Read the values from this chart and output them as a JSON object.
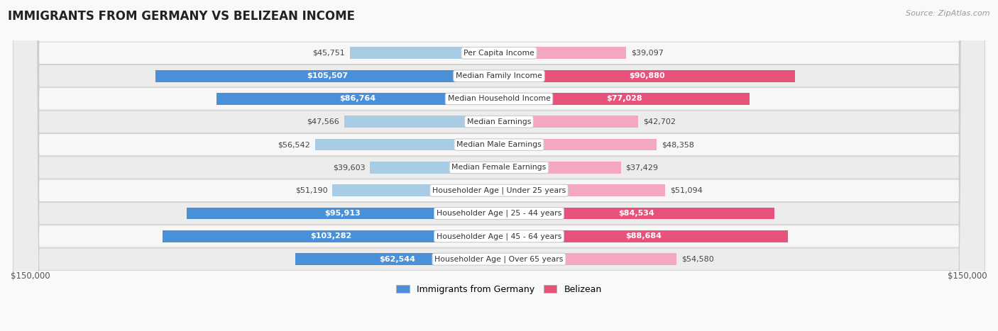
{
  "title": "IMMIGRANTS FROM GERMANY VS BELIZEAN INCOME",
  "source": "Source: ZipAtlas.com",
  "categories": [
    "Per Capita Income",
    "Median Family Income",
    "Median Household Income",
    "Median Earnings",
    "Median Male Earnings",
    "Median Female Earnings",
    "Householder Age | Under 25 years",
    "Householder Age | 25 - 44 years",
    "Householder Age | 45 - 64 years",
    "Householder Age | Over 65 years"
  ],
  "germany_values": [
    45751,
    105507,
    86764,
    47566,
    56542,
    39603,
    51190,
    95913,
    103282,
    62544
  ],
  "belizean_values": [
    39097,
    90880,
    77028,
    42702,
    48358,
    37429,
    51094,
    84534,
    88684,
    54580
  ],
  "germany_color_light": "#a8cce4",
  "germany_color_dark": "#4a90d9",
  "belizean_color_light": "#f4a8c0",
  "belizean_color_dark": "#e8527a",
  "germany_threshold": 60000,
  "belizean_threshold": 60000,
  "bar_height": 0.52,
  "max_val": 150000,
  "row_colors": [
    "#f7f7f7",
    "#ececec"
  ],
  "legend_germany": "Immigrants from Germany",
  "legend_belizean": "Belizean",
  "xlabel_left": "$150,000",
  "xlabel_right": "$150,000"
}
